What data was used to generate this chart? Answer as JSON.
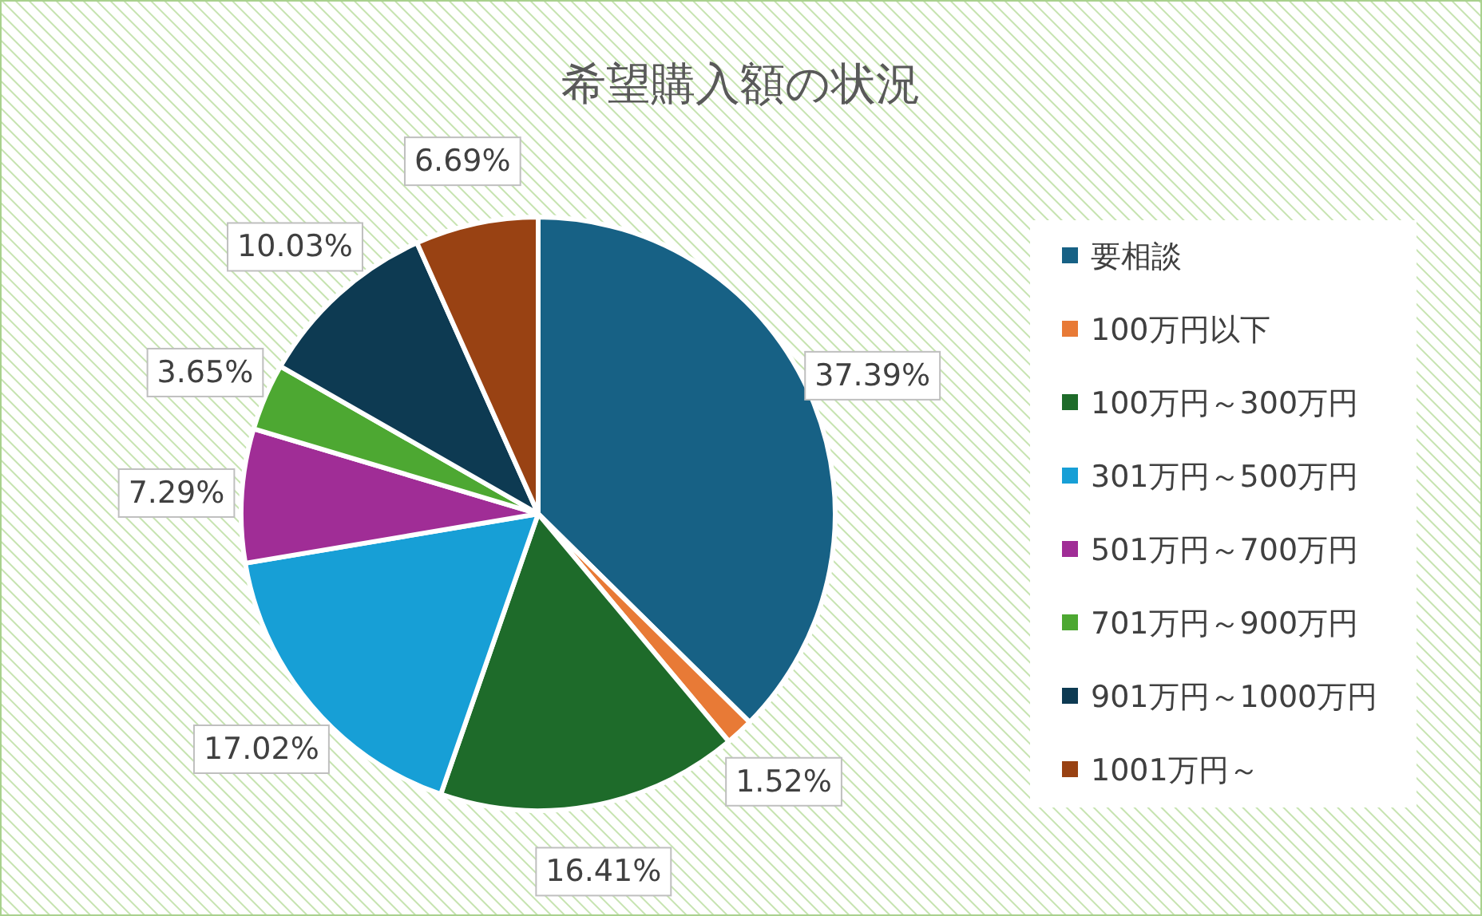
{
  "chart_data": {
    "type": "pie",
    "title": "希望購入額の状況",
    "categories": [
      "要相談",
      "100万円以下",
      "100万円～300万円",
      "301万円～500万円",
      "501万円～700万円",
      "701万円～900万円",
      "901万円～1000万円",
      "1001万円～"
    ],
    "values": [
      37.39,
      1.52,
      16.41,
      17.02,
      7.29,
      3.65,
      10.03,
      6.69
    ],
    "value_labels": [
      "37.39%",
      "1.52%",
      "16.41%",
      "17.02%",
      "7.29%",
      "3.65%",
      "10.03%",
      "6.69%"
    ],
    "colors": [
      "#176185",
      "#e87a36",
      "#1e6b2a",
      "#179fd6",
      "#a02d96",
      "#4da832",
      "#0d3a52",
      "#994213"
    ],
    "legend": "right"
  }
}
